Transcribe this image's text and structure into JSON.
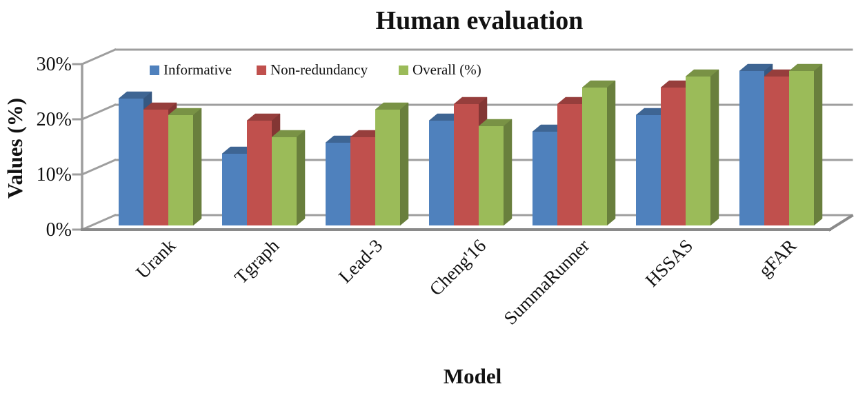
{
  "chart_data": {
    "type": "bar",
    "variant": "3d-clustered-column",
    "title": "Human evaluation",
    "xlabel": "Model",
    "ylabel": "Values (%)",
    "categories": [
      "Urank",
      "Tgraph",
      "Lead-3",
      "Cheng'16",
      "SummaRunner",
      "HSSAS",
      "gFAR"
    ],
    "series": [
      {
        "name": "Informative",
        "color": "#4F81BD",
        "values": [
          23,
          13,
          15,
          19,
          17,
          20,
          28
        ]
      },
      {
        "name": "Non-redundancy",
        "color": "#C0504D",
        "values": [
          21,
          19,
          16,
          22,
          22,
          25,
          27
        ]
      },
      {
        "name": "Overall (%)",
        "color": "#9BBB59",
        "values": [
          20,
          16,
          21,
          18,
          25,
          27,
          28
        ]
      }
    ],
    "ylim": [
      0,
      30
    ],
    "yticks": [
      0,
      10,
      20,
      30
    ],
    "ytick_labels": [
      "0%",
      "10%",
      "20%",
      "30%"
    ],
    "legend_position": "top-inside",
    "grid": "horizontal-backwall",
    "colors": {
      "wall_line": "#9E9E9E",
      "floor_front_line": "#8A8A8A",
      "text": "#111111"
    }
  }
}
